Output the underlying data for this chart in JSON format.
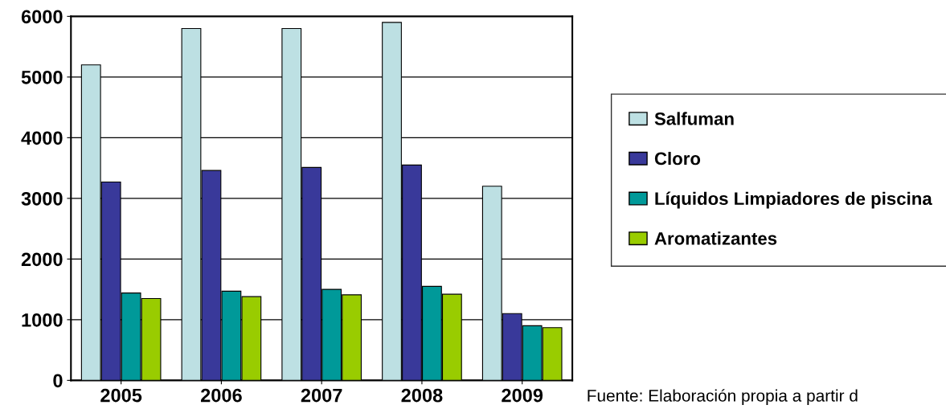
{
  "chart_data": {
    "type": "bar",
    "categories": [
      "2005",
      "2006",
      "2007",
      "2008",
      "2009"
    ],
    "series": [
      {
        "name": "Salfuman",
        "color": "#bde0e3",
        "values": [
          5200,
          5800,
          5800,
          5900,
          3200
        ]
      },
      {
        "name": "Cloro",
        "color": "#39399a",
        "values": [
          3270,
          3460,
          3510,
          3550,
          1100
        ]
      },
      {
        "name": "Líquidos Limpiadores de piscina",
        "color": "#009999",
        "values": [
          1440,
          1470,
          1500,
          1550,
          900
        ]
      },
      {
        "name": "Aromatizantes",
        "color": "#99cc00",
        "values": [
          1350,
          1380,
          1410,
          1420,
          870
        ]
      }
    ],
    "ylim": [
      0,
      6000
    ],
    "yticks": [
      0,
      1000,
      2000,
      3000,
      4000,
      5000,
      6000
    ],
    "grid": "y",
    "legend": "right",
    "annotations": [
      "Fuente: Elaboración propia a partir d"
    ]
  }
}
